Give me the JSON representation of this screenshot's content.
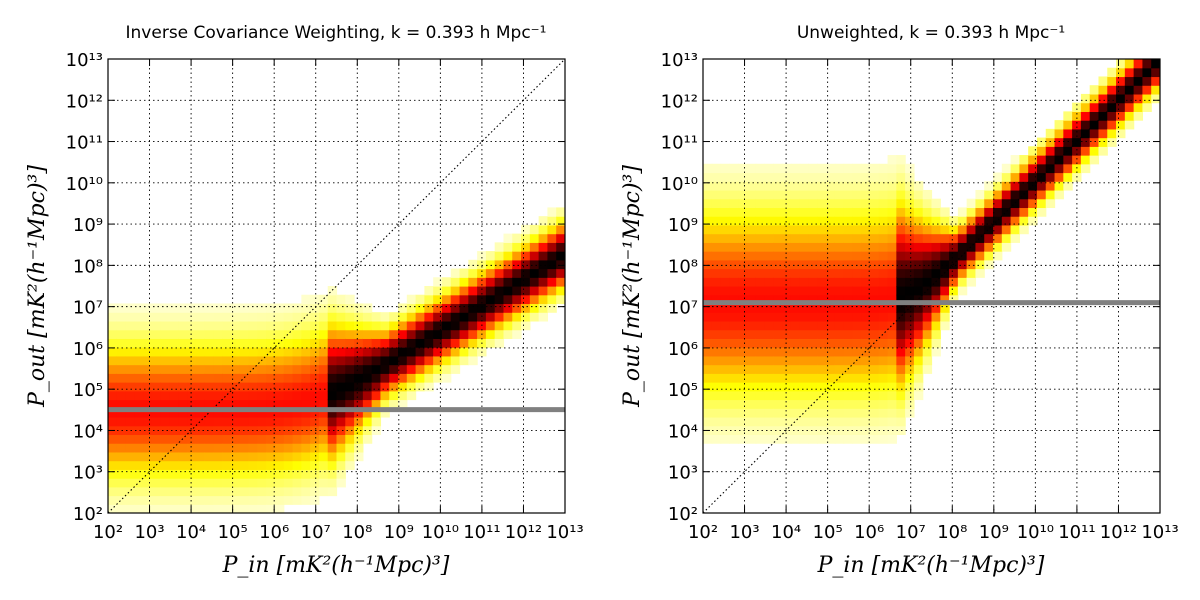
{
  "chart_data": [
    {
      "type": "heatmap",
      "title": "Inverse Covariance Weighting, k = 0.393 h Mpc⁻¹",
      "xlabel": "P_in [mK²(h⁻¹Mpc)³]",
      "ylabel": "P_out [mK²(h⁻¹Mpc)³]",
      "x_scale": "log",
      "y_scale": "log",
      "xlim": [
        100.0,
        10000000000000.0
      ],
      "ylim": [
        100.0,
        10000000000000.0
      ],
      "x_ticks": [
        "10²",
        "10³",
        "10⁴",
        "10⁵",
        "10⁶",
        "10⁷",
        "10⁸",
        "10⁹",
        "10¹⁰",
        "10¹¹",
        "10¹²",
        "10¹³"
      ],
      "y_ticks": [
        "10²",
        "10³",
        "10⁴",
        "10⁵",
        "10⁶",
        "10⁷",
        "10⁸",
        "10⁹",
        "10¹⁰",
        "10¹¹",
        "10¹²",
        "10¹³"
      ],
      "grid": true,
      "colormap": "hot_r",
      "reference_line": {
        "type": "y=x",
        "style": "dotted",
        "color": "#000000"
      },
      "horizontal_line": {
        "y": 32000.0,
        "color": "#808080"
      },
      "density_ridge": {
        "floor_log10": 4.5,
        "transition_log10_x": 7.2,
        "slope_high": 0.62,
        "pivot_log10_x": 9,
        "pivot_log10_y": 5.8,
        "high_x_spread": 0.25,
        "low_x_spread": 0.55
      }
    },
    {
      "type": "heatmap",
      "title": "Unweighted, k = 0.393 h Mpc⁻¹",
      "xlabel": "P_in [mK²(h⁻¹Mpc)³]",
      "ylabel": "P_out [mK²(h⁻¹Mpc)³]",
      "x_scale": "log",
      "y_scale": "log",
      "xlim": [
        100.0,
        10000000000000.0
      ],
      "ylim": [
        100.0,
        10000000000000.0
      ],
      "x_ticks": [
        "10²",
        "10³",
        "10⁴",
        "10⁵",
        "10⁶",
        "10⁷",
        "10⁸",
        "10⁹",
        "10¹⁰",
        "10¹¹",
        "10¹²",
        "10¹³"
      ],
      "y_ticks": [
        "10²",
        "10³",
        "10⁴",
        "10⁵",
        "10⁶",
        "10⁷",
        "10⁸",
        "10⁹",
        "10¹⁰",
        "10¹¹",
        "10¹²",
        "10¹³"
      ],
      "grid": true,
      "colormap": "hot_r",
      "reference_line": {
        "type": "y=x",
        "style": "dotted",
        "color": "#000000"
      },
      "horizontal_line": {
        "y": 12500000.0,
        "color": "#808080"
      },
      "density_ridge": {
        "floor_log10": 7.1,
        "transition_log10_x": 6.6,
        "slope_high": 0.98,
        "pivot_log10_x": 8,
        "pivot_log10_y": 8.1,
        "high_x_spread": 0.2,
        "low_x_spread": 0.75
      }
    }
  ]
}
